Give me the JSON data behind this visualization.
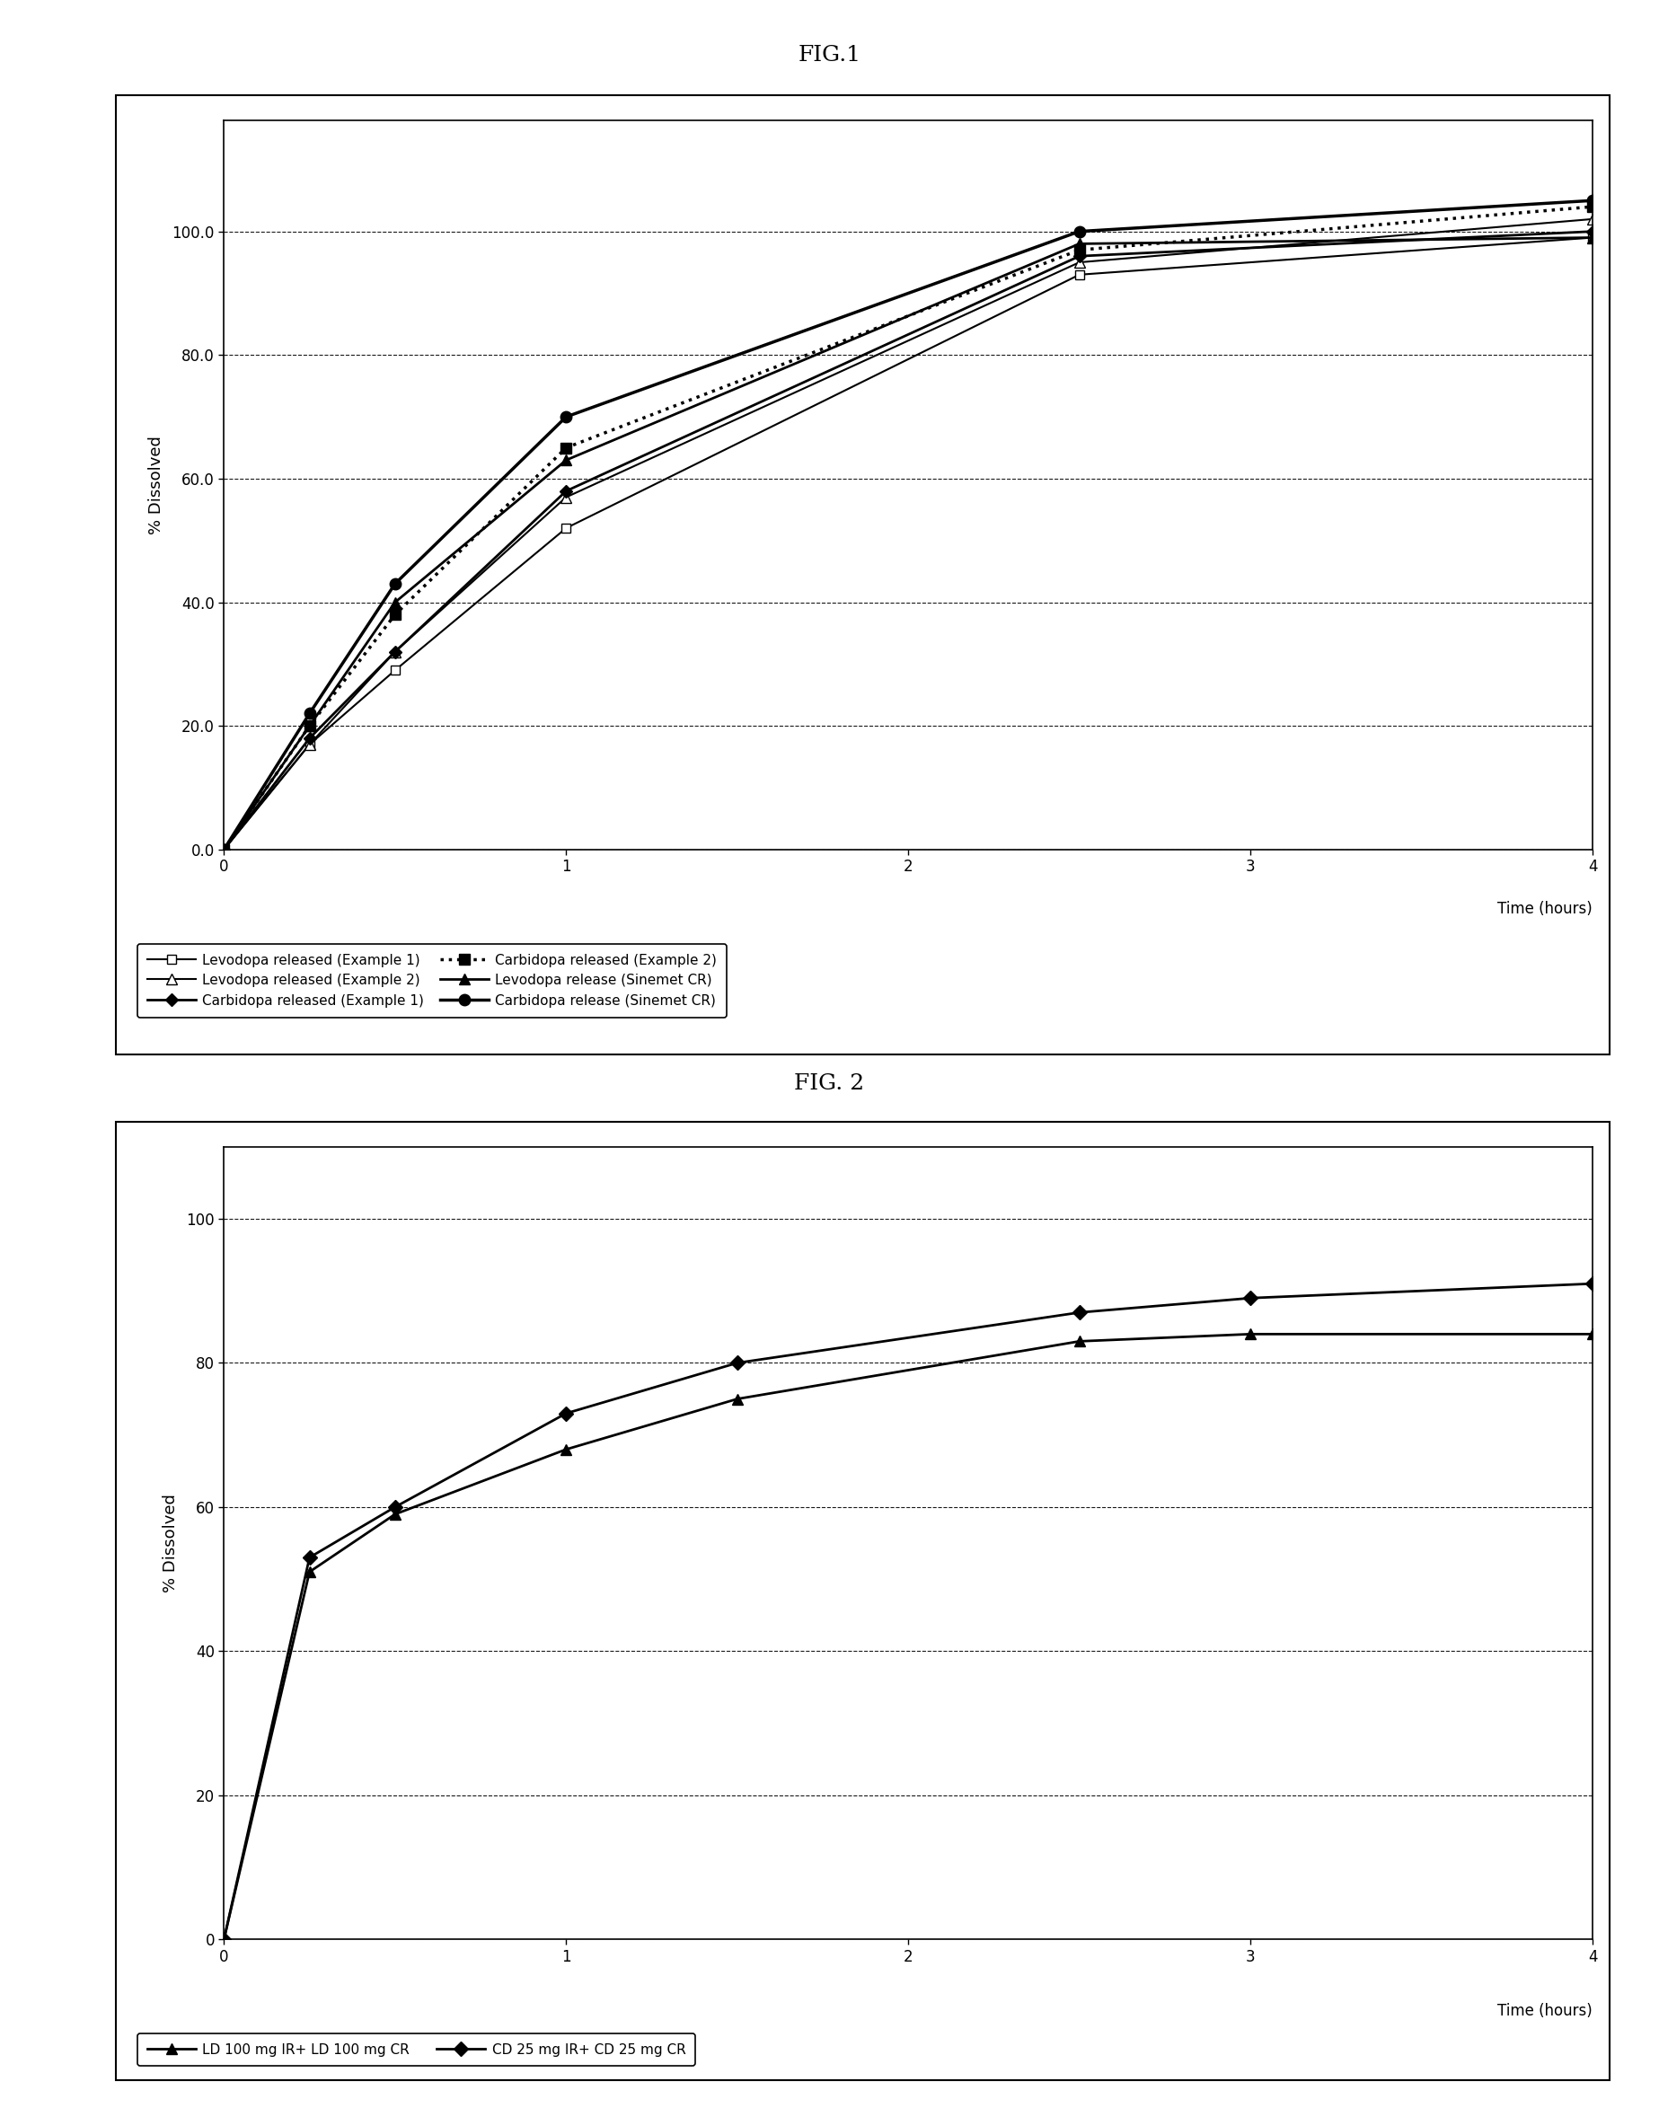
{
  "fig1_title": "FIG.1",
  "fig2_title": "FIG. 2",
  "ylabel": "% Dissolved",
  "xlabel": "Time (hours)",
  "fig1": {
    "xlim": [
      0,
      4
    ],
    "ylim": [
      0,
      118
    ],
    "yticks": [
      0.0,
      20.0,
      40.0,
      60.0,
      80.0,
      100.0
    ],
    "xticks": [
      0,
      1,
      2,
      3,
      4
    ],
    "series": {
      "levo_ex1": {
        "x": [
          0,
          0.25,
          0.5,
          1.0,
          2.5,
          4.0
        ],
        "y": [
          0,
          17,
          29,
          52,
          93,
          99
        ],
        "label": "Levodopa released (Example 1)",
        "color": "black",
        "linestyle": "-",
        "marker": "s",
        "markerfacecolor": "white",
        "markeredgecolor": "black",
        "linewidth": 1.5,
        "markersize": 7
      },
      "levo_ex2": {
        "x": [
          0,
          0.25,
          0.5,
          1.0,
          2.5,
          4.0
        ],
        "y": [
          0,
          17,
          32,
          57,
          95,
          102
        ],
        "label": "Levodopa released (Example 2)",
        "color": "black",
        "linestyle": "-",
        "marker": "^",
        "markerfacecolor": "white",
        "markeredgecolor": "black",
        "linewidth": 1.5,
        "markersize": 8
      },
      "carb_ex1": {
        "x": [
          0,
          0.25,
          0.5,
          1.0,
          2.5,
          4.0
        ],
        "y": [
          0,
          18,
          32,
          58,
          96,
          100
        ],
        "label": "Carbidopa released (Example 1)",
        "color": "black",
        "linestyle": "-",
        "marker": "D",
        "markerfacecolor": "black",
        "markeredgecolor": "black",
        "linewidth": 2.0,
        "markersize": 7
      },
      "carb_ex2": {
        "x": [
          0,
          0.25,
          0.5,
          1.0,
          2.5,
          4.0
        ],
        "y": [
          0,
          20,
          38,
          65,
          97,
          104
        ],
        "label": "Carbidopa released (Example 2)",
        "color": "black",
        "linestyle": ":",
        "marker": "s",
        "markerfacecolor": "black",
        "markeredgecolor": "black",
        "linewidth": 2.5,
        "markersize": 8
      },
      "levo_sinemet": {
        "x": [
          0,
          0.25,
          0.5,
          1.0,
          2.5,
          4.0
        ],
        "y": [
          0,
          20,
          40,
          63,
          98,
          99
        ],
        "label": "Levodopa release (Sinemet CR)",
        "color": "black",
        "linestyle": "-",
        "marker": "^",
        "markerfacecolor": "black",
        "markeredgecolor": "black",
        "linewidth": 2.0,
        "markersize": 9
      },
      "carb_sinemet": {
        "x": [
          0,
          0.25,
          0.5,
          1.0,
          2.5,
          4.0
        ],
        "y": [
          0,
          22,
          43,
          70,
          100,
          105
        ],
        "label": "Carbidopa release (Sinemet CR)",
        "color": "black",
        "linestyle": "-",
        "marker": "o",
        "markerfacecolor": "black",
        "markeredgecolor": "black",
        "linewidth": 2.5,
        "markersize": 9
      }
    }
  },
  "fig2": {
    "xlim": [
      0,
      4
    ],
    "ylim": [
      0,
      110
    ],
    "yticks": [
      0,
      20,
      40,
      60,
      80,
      100
    ],
    "xticks": [
      0,
      1,
      2,
      3,
      4
    ],
    "series": {
      "ld_combo": {
        "x": [
          0,
          0.25,
          0.5,
          1.0,
          1.5,
          2.5,
          3.0,
          4.0
        ],
        "y": [
          0,
          51,
          59,
          68,
          75,
          83,
          84,
          84
        ],
        "label": "LD 100 mg IR+ LD 100 mg CR",
        "color": "black",
        "linestyle": "-",
        "marker": "^",
        "markerfacecolor": "black",
        "markeredgecolor": "black",
        "linewidth": 2.0,
        "markersize": 9
      },
      "cd_combo": {
        "x": [
          0,
          0.25,
          0.5,
          1.0,
          1.5,
          2.5,
          3.0,
          4.0
        ],
        "y": [
          0,
          53,
          60,
          73,
          80,
          87,
          89,
          91
        ],
        "label": "CD 25 mg IR+ CD 25 mg CR",
        "color": "black",
        "linestyle": "-",
        "marker": "D",
        "markerfacecolor": "black",
        "markeredgecolor": "black",
        "linewidth": 2.0,
        "markersize": 8
      }
    }
  }
}
